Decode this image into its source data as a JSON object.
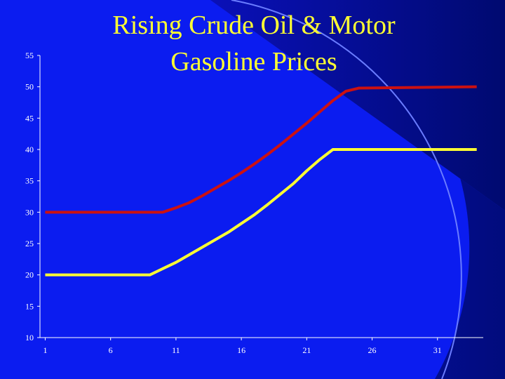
{
  "chart_data": {
    "type": "line",
    "title": "Rising Crude Oil & Motor Gasoline Prices",
    "x": [
      1,
      9,
      10,
      11,
      12,
      13,
      14,
      15,
      16,
      17,
      18,
      19,
      20,
      21,
      22,
      23,
      24,
      25,
      34
    ],
    "series": [
      {
        "color": "#cc1111",
        "values": [
          30,
          30,
          30,
          30.7,
          31.5,
          32.6,
          33.8,
          35,
          36.3,
          37.7,
          39.2,
          40.8,
          42.5,
          44.2,
          46,
          47.8,
          49.3,
          49.8,
          50
        ]
      },
      {
        "color": "#ffff33",
        "values": [
          20,
          20,
          21,
          22,
          23.2,
          24.4,
          25.6,
          26.8,
          28.2,
          29.6,
          31.2,
          32.9,
          34.6,
          36.6,
          38.4,
          40,
          40,
          40,
          40
        ]
      }
    ],
    "xlim": [
      0.6,
      34.5
    ],
    "xticks": [
      1,
      6,
      11,
      16,
      21,
      26,
      31
    ],
    "ylim": [
      10,
      55
    ],
    "yticks": [
      10,
      15,
      20,
      25,
      30,
      35,
      40,
      45,
      50,
      55
    ]
  }
}
